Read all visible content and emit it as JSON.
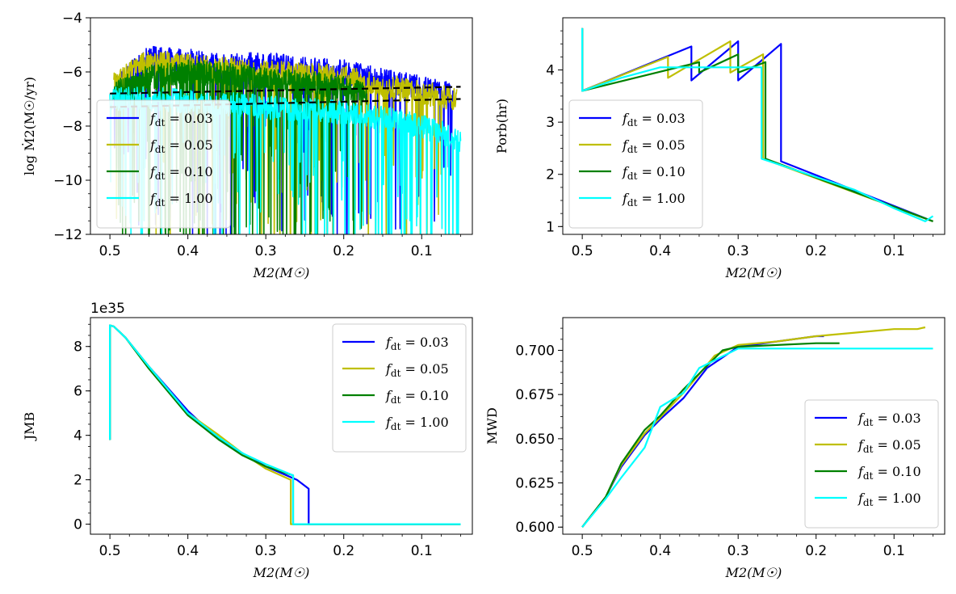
{
  "figure_title": "",
  "chart_data": [
    {
      "type": "line",
      "panel": "top-left",
      "title": "",
      "xlabel": "M2(M☉)",
      "ylabel": "log Ṁ2(M☉/yr)",
      "xlim": [
        0.525,
        0.035
      ],
      "ylim": [
        -12,
        -4
      ],
      "xticks": [
        0.5,
        0.4,
        0.3,
        0.2,
        0.1
      ],
      "xtick_labels": [
        "0.5",
        "0.4",
        "0.3",
        "0.2",
        "0.1"
      ],
      "yticks": [
        -12,
        -10,
        -8,
        -6,
        -4
      ],
      "ytick_labels": [
        "−12",
        "−10",
        "−8",
        "−6",
        "−4"
      ],
      "legend_position": "lower-left",
      "series": [
        {
          "name": "fdt=0.03",
          "label": "0.03",
          "color": "#0000ff",
          "x": [
            0.495,
            0.45,
            0.4,
            0.35,
            0.3,
            0.25,
            0.2,
            0.15,
            0.1,
            0.06
          ],
          "values": [
            -6.5,
            -5.5,
            -5.6,
            -5.8,
            -5.7,
            -5.9,
            -6.0,
            -6.3,
            -6.6,
            -6.8
          ],
          "style": "noisy"
        },
        {
          "name": "fdt=0.05",
          "label": "0.05",
          "color": "#bfbf00",
          "x": [
            0.495,
            0.45,
            0.4,
            0.35,
            0.3,
            0.25,
            0.2,
            0.15,
            0.1,
            0.055
          ],
          "values": [
            -6.4,
            -5.6,
            -5.8,
            -5.9,
            -6.0,
            -6.1,
            -6.2,
            -6.5,
            -6.8,
            -7.0
          ],
          "style": "noisy"
        },
        {
          "name": "fdt=0.10",
          "label": "0.10",
          "color": "#008000",
          "x": [
            0.495,
            0.45,
            0.4,
            0.35,
            0.3,
            0.25,
            0.2,
            0.17
          ],
          "values": [
            -6.7,
            -6.2,
            -6.0,
            -6.1,
            -6.3,
            -6.4,
            -6.6,
            -6.8
          ],
          "style": "noisy"
        },
        {
          "name": "fdt=1.00",
          "label": "1.00",
          "color": "#00ffff",
          "x": [
            0.5,
            0.45,
            0.4,
            0.35,
            0.3,
            0.25,
            0.2,
            0.15,
            0.1,
            0.05
          ],
          "values": [
            -7.0,
            -7.0,
            -7.1,
            -7.2,
            -7.3,
            -7.4,
            -7.5,
            -7.7,
            -8.0,
            -8.5
          ],
          "style": "noisy"
        },
        {
          "name": "reference-upper",
          "label": "",
          "color": "#000000",
          "dashed": true,
          "x": [
            0.5,
            0.05
          ],
          "values": [
            -6.8,
            -6.55
          ]
        },
        {
          "name": "reference-lower",
          "label": "",
          "color": "#000000",
          "dashed": true,
          "x": [
            0.5,
            0.05
          ],
          "values": [
            -7.3,
            -7.0
          ]
        }
      ]
    },
    {
      "type": "line",
      "panel": "top-right",
      "title": "",
      "xlabel": "M2(M☉)",
      "ylabel": "Porb(hr)",
      "xlim": [
        0.525,
        0.035
      ],
      "ylim": [
        0.85,
        5.0
      ],
      "xticks": [
        0.5,
        0.4,
        0.3,
        0.2,
        0.1
      ],
      "xtick_labels": [
        "0.5",
        "0.4",
        "0.3",
        "0.2",
        "0.1"
      ],
      "yticks": [
        1,
        2,
        3,
        4
      ],
      "ytick_labels": [
        "1",
        "2",
        "3",
        "4"
      ],
      "legend_position": "lower-left",
      "series": [
        {
          "name": "fdt=0.03",
          "label": "0.03",
          "color": "#0000ff",
          "x": [
            0.5,
            0.5,
            0.36,
            0.36,
            0.3,
            0.3,
            0.245,
            0.245,
            0.05
          ],
          "values": [
            4.8,
            3.6,
            4.45,
            3.8,
            4.55,
            3.8,
            4.5,
            2.25,
            1.1
          ]
        },
        {
          "name": "fdt=0.05",
          "label": "0.05",
          "color": "#bfbf00",
          "x": [
            0.5,
            0.5,
            0.39,
            0.39,
            0.31,
            0.31,
            0.268,
            0.268,
            0.05
          ],
          "values": [
            4.8,
            3.6,
            4.25,
            3.85,
            4.55,
            3.95,
            4.3,
            2.3,
            1.1
          ]
        },
        {
          "name": "fdt=0.10",
          "label": "0.10",
          "color": "#008000",
          "x": [
            0.5,
            0.5,
            0.35,
            0.35,
            0.3,
            0.3,
            0.265,
            0.265,
            0.05
          ],
          "values": [
            4.8,
            3.6,
            4.15,
            3.95,
            4.3,
            3.95,
            4.15,
            2.3,
            1.1
          ]
        },
        {
          "name": "fdt=1.00",
          "label": "1.00",
          "color": "#00ffff",
          "x": [
            0.5,
            0.5,
            0.45,
            0.4,
            0.35,
            0.3,
            0.27,
            0.27,
            0.26,
            0.2,
            0.15,
            0.1,
            0.06,
            0.05
          ],
          "values": [
            4.8,
            3.6,
            3.85,
            4.05,
            4.05,
            4.05,
            4.05,
            2.3,
            2.25,
            1.95,
            1.7,
            1.35,
            1.1,
            1.2
          ]
        }
      ]
    },
    {
      "type": "line",
      "panel": "bottom-left",
      "title": "",
      "offset_label": "1e35",
      "xlabel": "M2(M☉)",
      "ylabel": "JMB",
      "xlim": [
        0.525,
        0.035
      ],
      "ylim": [
        -0.45,
        9.3
      ],
      "xticks": [
        0.5,
        0.4,
        0.3,
        0.2,
        0.1
      ],
      "xtick_labels": [
        "0.5",
        "0.4",
        "0.3",
        "0.2",
        "0.1"
      ],
      "yticks": [
        0,
        2,
        4,
        6,
        8
      ],
      "ytick_labels": [
        "0",
        "2",
        "4",
        "6",
        "8"
      ],
      "legend_position": "upper-right",
      "series": [
        {
          "name": "fdt=0.03",
          "label": "0.03",
          "color": "#0000ff",
          "x": [
            0.5,
            0.5,
            0.495,
            0.48,
            0.45,
            0.4,
            0.36,
            0.33,
            0.3,
            0.26,
            0.245,
            0.245,
            0.05
          ],
          "values": [
            3.8,
            8.95,
            8.9,
            8.4,
            7.1,
            5.1,
            3.8,
            3.2,
            2.6,
            2.0,
            1.6,
            0.0,
            0.0
          ]
        },
        {
          "name": "fdt=0.05",
          "label": "0.05",
          "color": "#bfbf00",
          "x": [
            0.5,
            0.5,
            0.495,
            0.48,
            0.45,
            0.4,
            0.36,
            0.33,
            0.3,
            0.268,
            0.268,
            0.05
          ],
          "values": [
            3.8,
            8.95,
            8.9,
            8.4,
            7.1,
            5.0,
            4.0,
            3.2,
            2.5,
            2.0,
            0.0,
            0.0
          ]
        },
        {
          "name": "fdt=0.10",
          "label": "0.10",
          "color": "#008000",
          "x": [
            0.5,
            0.5,
            0.495,
            0.48,
            0.45,
            0.4,
            0.36,
            0.33,
            0.3,
            0.265,
            0.265,
            0.05
          ],
          "values": [
            3.8,
            8.95,
            8.9,
            8.4,
            7.0,
            4.9,
            3.8,
            3.1,
            2.6,
            2.2,
            0.0,
            0.0
          ]
        },
        {
          "name": "fdt=1.00",
          "label": "1.00",
          "color": "#00ffff",
          "x": [
            0.5,
            0.5,
            0.495,
            0.48,
            0.45,
            0.4,
            0.36,
            0.33,
            0.3,
            0.265,
            0.265,
            0.05
          ],
          "values": [
            3.8,
            8.95,
            8.9,
            8.4,
            7.1,
            5.0,
            3.9,
            3.2,
            2.7,
            2.2,
            0.0,
            0.0
          ]
        }
      ]
    },
    {
      "type": "line",
      "panel": "bottom-right",
      "title": "",
      "xlabel": "M2(M☉)",
      "ylabel": "MWD",
      "xlim": [
        0.525,
        0.035
      ],
      "ylim": [
        0.596,
        0.7185
      ],
      "xticks": [
        0.5,
        0.4,
        0.3,
        0.2,
        0.1
      ],
      "xtick_labels": [
        "0.5",
        "0.4",
        "0.3",
        "0.2",
        "0.1"
      ],
      "yticks": [
        0.6,
        0.625,
        0.65,
        0.675,
        0.7
      ],
      "ytick_labels": [
        "0.600",
        "0.625",
        "0.650",
        "0.675",
        "0.700"
      ],
      "legend_position": "lower-right",
      "series": [
        {
          "name": "fdt=0.03",
          "label": "0.03",
          "color": "#0000ff",
          "x": [
            0.5,
            0.47,
            0.45,
            0.42,
            0.4,
            0.37,
            0.34,
            0.3,
            0.25,
            0.2,
            0.19
          ],
          "values": [
            0.6,
            0.617,
            0.634,
            0.652,
            0.661,
            0.673,
            0.69,
            0.702,
            0.705,
            0.708,
            0.708
          ]
        },
        {
          "name": "fdt=0.05",
          "label": "0.05",
          "color": "#bfbf00",
          "x": [
            0.5,
            0.47,
            0.45,
            0.42,
            0.4,
            0.37,
            0.33,
            0.3,
            0.25,
            0.2,
            0.15,
            0.1,
            0.07,
            0.06
          ],
          "values": [
            0.6,
            0.617,
            0.635,
            0.653,
            0.662,
            0.676,
            0.697,
            0.703,
            0.705,
            0.708,
            0.71,
            0.712,
            0.712,
            0.713
          ]
        },
        {
          "name": "fdt=0.10",
          "label": "0.10",
          "color": "#008000",
          "x": [
            0.5,
            0.47,
            0.45,
            0.42,
            0.4,
            0.37,
            0.32,
            0.3,
            0.25,
            0.2,
            0.17
          ],
          "values": [
            0.6,
            0.617,
            0.636,
            0.655,
            0.663,
            0.678,
            0.7,
            0.702,
            0.703,
            0.704,
            0.704
          ]
        },
        {
          "name": "fdt=1.00",
          "label": "1.00",
          "color": "#00ffff",
          "x": [
            0.5,
            0.47,
            0.45,
            0.42,
            0.4,
            0.37,
            0.35,
            0.3,
            0.25,
            0.2,
            0.15,
            0.1,
            0.05
          ],
          "values": [
            0.6,
            0.616,
            0.628,
            0.645,
            0.668,
            0.676,
            0.69,
            0.701,
            0.701,
            0.701,
            0.701,
            0.701,
            0.701
          ]
        }
      ]
    }
  ]
}
